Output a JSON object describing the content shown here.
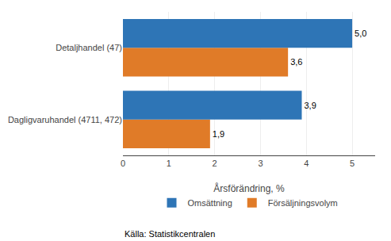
{
  "chart_data": {
    "type": "bar",
    "orientation": "horizontal",
    "categories": [
      "Dagligvaruhandel (4711, 472)",
      "Detaljhandel (47)"
    ],
    "series": [
      {
        "name": "Omsättning",
        "color": "#2E75B6",
        "values": [
          3.9,
          5.0
        ],
        "value_labels": [
          "3,9",
          "5,0"
        ]
      },
      {
        "name": "Försäljningsvolym",
        "color": "#E07B28",
        "values": [
          1.9,
          3.6
        ],
        "value_labels": [
          "1,9",
          "3,6"
        ]
      }
    ],
    "xlabel": "Årsförändring, %",
    "xlim": [
      0,
      5.5
    ],
    "xticks": [
      0,
      1,
      2,
      3,
      4,
      5
    ],
    "grid": true,
    "data_labels": true,
    "legend": "bottom",
    "annotations": [
      "Källa: Statistikcentralen"
    ]
  }
}
